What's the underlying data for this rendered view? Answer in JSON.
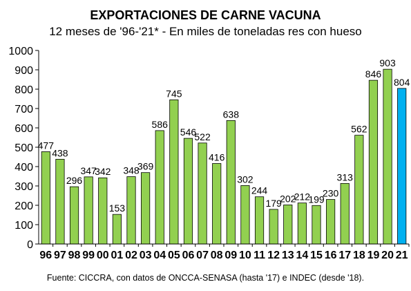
{
  "chart_data": {
    "type": "bar",
    "title": "EXPORTACIONES DE CARNE VACUNA",
    "subtitle": "12 meses de '96-'21* - En miles de toneladas res con hueso",
    "source": "Fuente: CICCRA, con datos de ONCCA-SENASA (hasta '17) e INDEC (desde '18).",
    "categories": [
      "96",
      "97",
      "98",
      "99",
      "00",
      "01",
      "02",
      "03",
      "04",
      "05",
      "06",
      "07",
      "08",
      "09",
      "10",
      "11",
      "12",
      "13",
      "14",
      "15",
      "16",
      "17",
      "18",
      "19",
      "20",
      "21"
    ],
    "values": [
      477,
      438,
      296,
      347,
      342,
      153,
      348,
      369,
      586,
      745,
      546,
      522,
      416,
      638,
      302,
      244,
      179,
      202,
      212,
      199,
      230,
      313,
      562,
      846,
      903,
      804
    ],
    "ylim": [
      0,
      1000
    ],
    "yticks": [
      0,
      100,
      200,
      300,
      400,
      500,
      600,
      700,
      800,
      900,
      1000
    ],
    "grid": false,
    "colors": {
      "default": "#92d050",
      "highlight": "#00b0f0",
      "outline": "#000000"
    },
    "highlight_index": 25
  }
}
